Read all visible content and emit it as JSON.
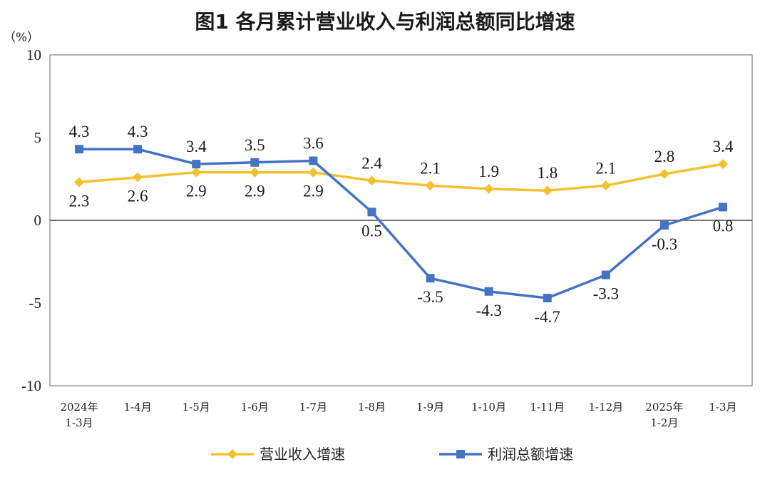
{
  "chart_data": {
    "type": "line",
    "title": "图1  各月累计营业收入与利润总额同比增速",
    "unit_label": "（%）",
    "ylim": [
      -10,
      10
    ],
    "yticks": [
      10,
      5,
      0,
      -5,
      -10
    ],
    "categories": [
      [
        "2024年",
        "1-3月"
      ],
      [
        "1-4月"
      ],
      [
        "1-5月"
      ],
      [
        "1-6月"
      ],
      [
        "1-7月"
      ],
      [
        "1-8月"
      ],
      [
        "1-9月"
      ],
      [
        "1-10月"
      ],
      [
        "1-11月"
      ],
      [
        "1-12月"
      ],
      [
        "2025年",
        "1-2月"
      ],
      [
        "1-3月"
      ]
    ],
    "series": [
      {
        "name": "营业收入增速",
        "color": "#F2C12E",
        "marker": "diamond",
        "values": [
          2.3,
          2.6,
          2.9,
          2.9,
          2.9,
          2.4,
          2.1,
          1.9,
          1.8,
          2.1,
          2.8,
          3.4
        ],
        "labels": [
          "2.3",
          "2.6",
          "2.9",
          "2.9",
          "2.9",
          "2.4",
          "2.1",
          "1.9",
          "1.8",
          "2.1",
          "2.8",
          "3.4"
        ],
        "label_pos": [
          "below",
          "below",
          "below",
          "below",
          "below",
          "above",
          "above",
          "above",
          "above",
          "above",
          "above",
          "above"
        ]
      },
      {
        "name": "利润总额增速",
        "color": "#4472C4",
        "marker": "square",
        "values": [
          4.3,
          4.3,
          3.4,
          3.5,
          3.6,
          0.5,
          -3.5,
          -4.3,
          -4.7,
          -3.3,
          -0.3,
          0.8
        ],
        "labels": [
          "4.3",
          "4.3",
          "3.4",
          "3.5",
          "3.6",
          "0.5",
          "-3.5",
          "-4.3",
          "-4.7",
          "-3.3",
          "-0.3",
          "0.8"
        ],
        "label_pos": [
          "above",
          "above",
          "above",
          "above",
          "above",
          "below",
          "below",
          "below",
          "below",
          "below",
          "below",
          "below"
        ]
      }
    ],
    "grid": false,
    "zero_line": true,
    "legend_position": "bottom-center"
  }
}
